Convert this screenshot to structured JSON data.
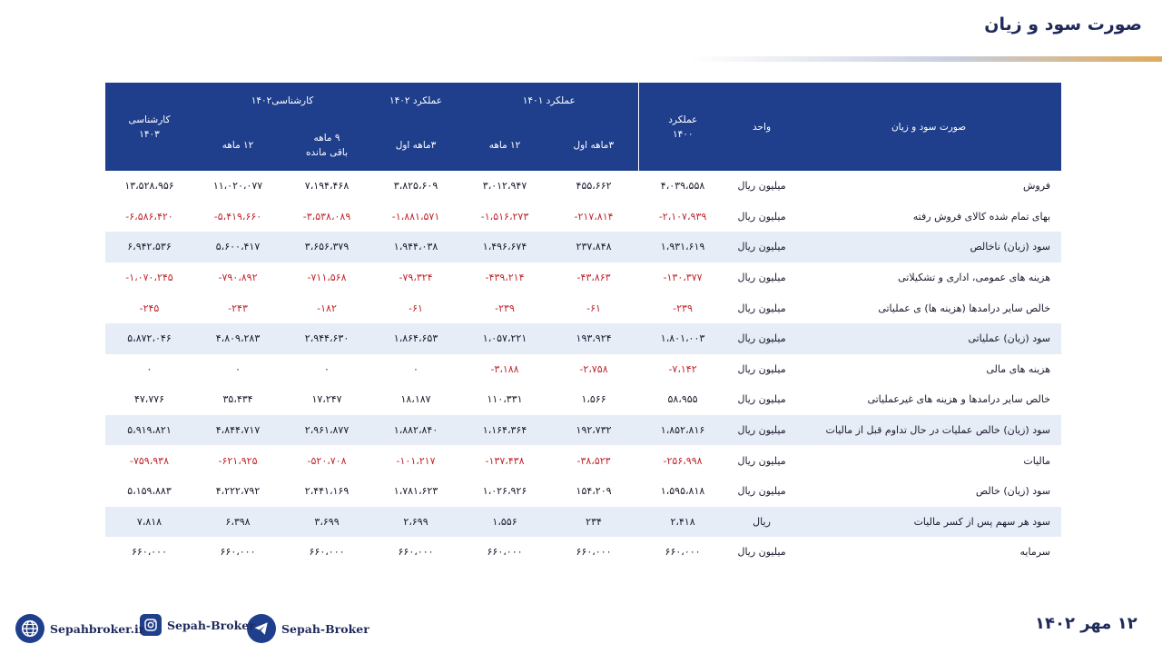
{
  "page_title": "صورت سود و زیان",
  "table": {
    "header": {
      "col_item": "صورت سود و زیان",
      "col_unit": "واحد",
      "col_1400_line1": "عملکرد",
      "col_1400_line2": "۱۴۰۰",
      "group_1401": "عملکرد ۱۴۰۱",
      "group_1402_actual": "عملکرد ۱۴۰۲",
      "group_1402_forecast": "کارشناسی۱۴۰۲",
      "col_1403_line1": "کارشناسی",
      "col_1403_line2": "۱۴۰۳",
      "sub_3m_1401": "۳ماهه اول",
      "sub_12m_1401": "۱۲ ماهه",
      "sub_3m_1402": "۳ماهه اول",
      "sub_9m_line1": "۹ ماهه",
      "sub_9m_line2": "باقی مانده",
      "sub_12m_1402": "۱۲ ماهه"
    },
    "rows": [
      {
        "label": "فروش",
        "unit": "میلیون ریال",
        "v1400": "۴،۰۳۹،۵۵۸",
        "v1401_3m": "۴۵۵،۶۶۲",
        "v1401_12m": "۳،۰۱۲،۹۴۷",
        "v1402_3m": "۳،۸۲۵،۶۰۹",
        "v1402_9m": "۷،۱۹۴،۴۶۸",
        "v1402_12m": "۱۱،۰۲۰،۰۷۷",
        "v1403": "۱۳،۵۲۸،۹۵۶",
        "neg": false
      },
      {
        "label": "بهای تمام شده کالای فروش رفته",
        "unit": "میلیون ریال",
        "v1400": "-۲،۱۰۷،۹۳۹",
        "v1401_3m": "-۲۱۷،۸۱۴",
        "v1401_12m": "-۱،۵۱۶،۲۷۳",
        "v1402_3m": "-۱،۸۸۱،۵۷۱",
        "v1402_9m": "-۳،۵۳۸،۰۸۹",
        "v1402_12m": "-۵،۴۱۹،۶۶۰",
        "v1403": "-۶،۵۸۶،۴۲۰",
        "neg": true
      },
      {
        "label": "سود (زیان) ناخالص",
        "unit": "میلیون ریال",
        "v1400": "۱،۹۳۱،۶۱۹",
        "v1401_3m": "۲۳۷،۸۴۸",
        "v1401_12m": "۱،۴۹۶،۶۷۴",
        "v1402_3m": "۱،۹۴۴،۰۳۸",
        "v1402_9m": "۳،۶۵۶،۳۷۹",
        "v1402_12m": "۵،۶۰۰،۴۱۷",
        "v1403": "۶،۹۴۲،۵۳۶",
        "neg": false
      },
      {
        "label": "هزینه های عمومی، اداری و تشکیلاتی",
        "unit": "میلیون ریال",
        "v1400": "-۱۳۰،۳۷۷",
        "v1401_3m": "-۴۳،۸۶۳",
        "v1401_12m": "-۴۳۹،۲۱۴",
        "v1402_3m": "-۷۹،۳۲۴",
        "v1402_9m": "-۷۱۱،۵۶۸",
        "v1402_12m": "-۷۹۰،۸۹۲",
        "v1403": "-۱،۰۷۰،۲۴۵",
        "neg": true
      },
      {
        "label": "خالص سایر درامدها (هزینه ها) ی عملیاتی",
        "unit": "میلیون ریال",
        "v1400": "-۲۳۹",
        "v1401_3m": "-۶۱",
        "v1401_12m": "-۲۳۹",
        "v1402_3m": "-۶۱",
        "v1402_9m": "-۱۸۲",
        "v1402_12m": "-۲۴۳",
        "v1403": "-۲۴۵",
        "neg": true
      },
      {
        "label": "سود (زیان) عملیاتی",
        "unit": "میلیون ریال",
        "v1400": "۱،۸۰۱،۰۰۳",
        "v1401_3m": "۱۹۳،۹۲۴",
        "v1401_12m": "۱،۰۵۷،۲۲۱",
        "v1402_3m": "۱،۸۶۴،۶۵۳",
        "v1402_9m": "۲،۹۴۴،۶۳۰",
        "v1402_12m": "۴،۸۰۹،۲۸۳",
        "v1403": "۵،۸۷۲،۰۴۶",
        "neg": false
      },
      {
        "label": "هزینه های مالی",
        "unit": "میلیون ریال",
        "v1400": "-۷،۱۴۲",
        "v1401_3m": "-۲،۷۵۸",
        "v1401_12m": "-۳،۱۸۸",
        "v1402_3m": "۰",
        "v1402_9m": "۰",
        "v1402_12m": "۰",
        "v1403": "۰",
        "neg": "partial"
      },
      {
        "label": "خالص سایر درامدها و هزینه های غیرعملیاتی",
        "unit": "میلیون ریال",
        "v1400": "۵۸،۹۵۵",
        "v1401_3m": "۱،۵۶۶",
        "v1401_12m": "۱۱۰،۳۳۱",
        "v1402_3m": "۱۸،۱۸۷",
        "v1402_9m": "۱۷،۲۴۷",
        "v1402_12m": "۳۵،۴۳۴",
        "v1403": "۴۷،۷۷۶",
        "neg": false
      },
      {
        "label": "سود (زیان) خالص عملیات در حال تداوم قبل از مالیات",
        "unit": "میلیون ریال",
        "v1400": "۱،۸۵۲،۸۱۶",
        "v1401_3m": "۱۹۲،۷۳۲",
        "v1401_12m": "۱،۱۶۴،۳۶۴",
        "v1402_3m": "۱،۸۸۲،۸۴۰",
        "v1402_9m": "۲،۹۶۱،۸۷۷",
        "v1402_12m": "۴،۸۴۴،۷۱۷",
        "v1403": "۵،۹۱۹،۸۲۱",
        "neg": false
      },
      {
        "label": "مالیات",
        "unit": "میلیون ریال",
        "v1400": "-۲۵۶،۹۹۸",
        "v1401_3m": "-۳۸،۵۲۳",
        "v1401_12m": "-۱۳۷،۴۳۸",
        "v1402_3m": "-۱۰۱،۲۱۷",
        "v1402_9m": "-۵۲۰،۷۰۸",
        "v1402_12m": "-۶۲۱،۹۲۵",
        "v1403": "-۷۵۹،۹۳۸",
        "neg": true
      },
      {
        "label": "سود (زیان) خالص",
        "unit": "میلیون ریال",
        "v1400": "۱،۵۹۵،۸۱۸",
        "v1401_3m": "۱۵۴،۲۰۹",
        "v1401_12m": "۱،۰۲۶،۹۲۶",
        "v1402_3m": "۱،۷۸۱،۶۲۳",
        "v1402_9m": "۲،۴۴۱،۱۶۹",
        "v1402_12m": "۴،۲۲۲،۷۹۲",
        "v1403": "۵،۱۵۹،۸۸۳",
        "neg": false
      },
      {
        "label": "سود هر سهم پس از کسر مالیات",
        "unit": "ریال",
        "v1400": "۲،۴۱۸",
        "v1401_3m": "۲۳۴",
        "v1401_12m": "۱،۵۵۶",
        "v1402_3m": "۲،۶۹۹",
        "v1402_9m": "۳،۶۹۹",
        "v1402_12m": "۶،۳۹۸",
        "v1403": "۷،۸۱۸",
        "neg": false
      },
      {
        "label": "سرمایه",
        "unit": "میلیون ریال",
        "v1400": "۶۶۰،۰۰۰",
        "v1401_3m": "۶۶۰،۰۰۰",
        "v1401_12m": "۶۶۰،۰۰۰",
        "v1402_3m": "۶۶۰،۰۰۰",
        "v1402_9m": "۶۶۰،۰۰۰",
        "v1402_12m": "۶۶۰،۰۰۰",
        "v1403": "۶۶۰،۰۰۰",
        "neg": false
      }
    ]
  },
  "footer": {
    "date": "۱۲ مهر ۱۴۰۲",
    "telegram_label": "Sepah-Broker",
    "instagram_label": "Sepah-Broker",
    "website_label": "Sepahbroker.ir",
    "telegram_icon": "telegram-icon",
    "instagram_icon": "instagram-icon",
    "website_icon": "globe-icon"
  },
  "colors": {
    "header_bg": "#1f3f8c",
    "stripe_bg": "#e6edf7",
    "negative": "#c0262d",
    "title": "#1f2a5a"
  }
}
